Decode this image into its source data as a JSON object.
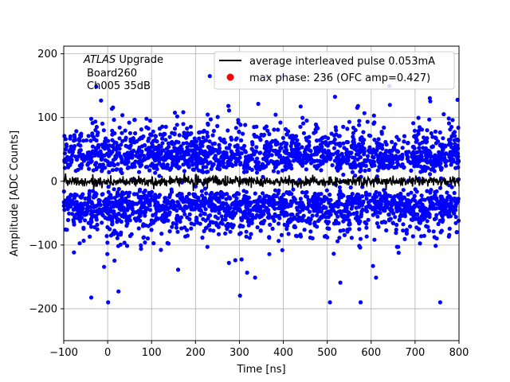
{
  "chart_data": {
    "type": "scatter",
    "title": "",
    "xlabel": "Time [ns]",
    "ylabel": "Amplitude [ADC Counts]",
    "xlim": [
      -100,
      800
    ],
    "ylim": [
      -250,
      212
    ],
    "x_ticks": [
      -100,
      0,
      100,
      200,
      300,
      400,
      500,
      600,
      700,
      800
    ],
    "y_ticks": [
      -200,
      -100,
      0,
      100,
      200
    ],
    "grid": true,
    "legend_position": "top-right",
    "annotation": {
      "line1_italic": "ATLAS",
      "line1_rest": " Upgrade",
      "line2": "Board260",
      "line3": "Ch005 35dB"
    },
    "series": [
      {
        "name": "max phase: 236 (OFC amp=0.427)",
        "kind": "scatter",
        "color": "#0000ff",
        "legend_color": "#ff0000",
        "description_of_distribution": {
          "bands": [
            [
              10,
              80
            ],
            [
              -80,
              -10
            ]
          ],
          "typical_spread": 110,
          "outlier_range": [
            -190,
            165
          ]
        }
      },
      {
        "name": "average interleaved pulse 0.053mA",
        "kind": "line",
        "color": "#000000",
        "mean": 0,
        "noise_amplitude": 6
      }
    ]
  }
}
